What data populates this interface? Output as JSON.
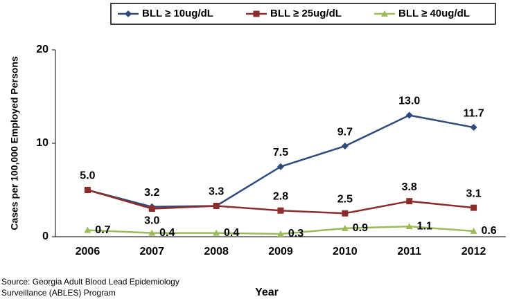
{
  "chart_data": {
    "type": "line",
    "y_label": "Cases  per 100,000 Employed Persons",
    "x_label": "Year",
    "source": [
      "Source:  Georgia Adult Blood Lead Epidemiology",
      "Surveillance (ABLES) Program"
    ],
    "categories": [
      "2006",
      "2007",
      "2008",
      "2009",
      "2010",
      "2011",
      "2012"
    ],
    "series": [
      {
        "name": "BLL ≥ 10ug/dL",
        "color": "#2f4b7c",
        "marker": "diamond",
        "values": [
          5.0,
          3.2,
          3.3,
          7.5,
          9.7,
          13.0,
          11.7
        ],
        "value_labels": [
          "5.0",
          "3.2",
          "3.3",
          "7.5",
          "9.7",
          "13.0",
          "11.7"
        ]
      },
      {
        "name": "BLL ≥ 25ug/dL",
        "color": "#8c2d2d",
        "marker": "square",
        "values": [
          5.0,
          3.0,
          3.3,
          2.8,
          2.5,
          3.8,
          3.1
        ],
        "value_labels": [
          null,
          "3.0",
          null,
          "2.8",
          "2.5",
          "3.8",
          "3.1"
        ]
      },
      {
        "name": "BLL ≥ 40ug/dL",
        "color": "#9bbb59",
        "marker": "triangle",
        "values": [
          0.7,
          0.4,
          0.4,
          0.3,
          0.9,
          1.1,
          0.6
        ],
        "value_labels": [
          "0.7",
          "0.4",
          "0.4",
          "0.3",
          "0.9",
          "1.1",
          "0.6"
        ]
      }
    ],
    "ylim": [
      0,
      20
    ],
    "yticks": [
      0,
      10,
      20
    ],
    "grid": false,
    "legend": "top"
  }
}
